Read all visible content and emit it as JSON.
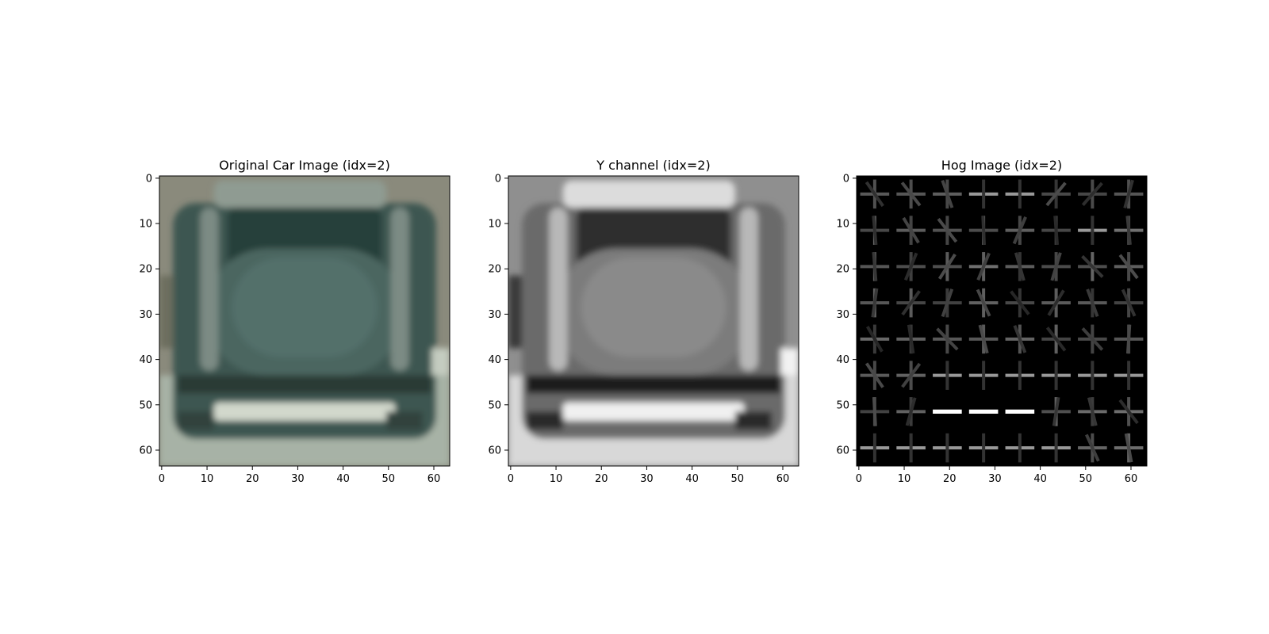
{
  "panels": [
    {
      "title": "Original Car Image (idx=2)",
      "kind": "rgb-photo",
      "x_ticks": [
        "0",
        "10",
        "20",
        "30",
        "40",
        "50",
        "60"
      ],
      "y_ticks": [
        "0",
        "10",
        "20",
        "30",
        "40",
        "50",
        "60"
      ],
      "palette": {
        "background": "#8a8a7c",
        "body": "#3c5751",
        "window": "#26403a",
        "road": "#a7b2a6",
        "plate": "#d2d8cc"
      }
    },
    {
      "title": "Y channel (idx=2)",
      "kind": "grayscale-channel",
      "x_ticks": [
        "0",
        "10",
        "20",
        "30",
        "40",
        "50",
        "60"
      ],
      "y_ticks": [
        "0",
        "10",
        "20",
        "30",
        "40",
        "50",
        "60"
      ],
      "palette": {
        "background": "#8f8f8f",
        "body": "#6a6a6a",
        "window": "#2f2f2f",
        "road": "#d8d8d8",
        "plate": "#f0f0f0"
      }
    },
    {
      "title": "Hog Image (idx=2)",
      "kind": "hog-visualization",
      "x_ticks": [
        "0",
        "10",
        "20",
        "30",
        "40",
        "50",
        "60"
      ],
      "y_ticks": [
        "0",
        "10",
        "20",
        "30",
        "40",
        "50",
        "60"
      ],
      "palette": {
        "background": "#000000",
        "stroke": "#ffffff"
      }
    }
  ]
}
